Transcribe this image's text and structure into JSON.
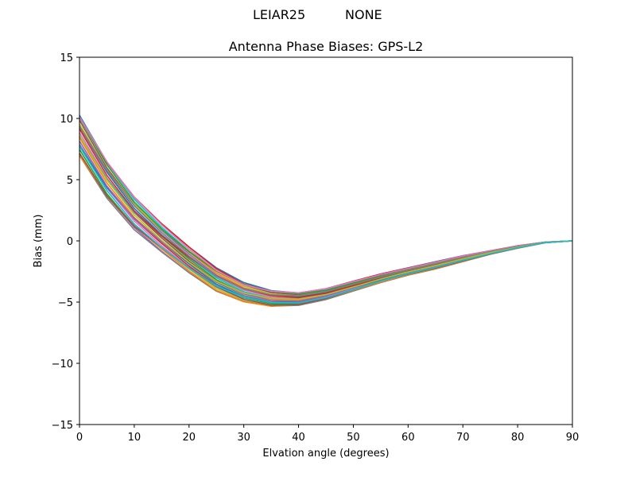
{
  "figure": {
    "suptitle_left": "LEIAR25",
    "suptitle_right": "NONE"
  },
  "chart_data": {
    "type": "line",
    "title": "Antenna Phase Biases: GPS-L2",
    "xlabel": "Elvation angle (degrees)",
    "ylabel": "Bias (mm)",
    "xlim": [
      0,
      90
    ],
    "ylim": [
      -15,
      15
    ],
    "xticks": [
      0,
      10,
      20,
      30,
      40,
      50,
      60,
      70,
      80,
      90
    ],
    "yticks": [
      -15,
      -10,
      -5,
      0,
      5,
      10,
      15
    ],
    "ytick_labels": [
      "−15",
      "−10",
      "−5",
      "0",
      "5",
      "10",
      "15"
    ],
    "grid": false,
    "legend": "none",
    "x": [
      0,
      5,
      10,
      15,
      20,
      25,
      30,
      35,
      40,
      45,
      50,
      55,
      60,
      65,
      70,
      75,
      80,
      85,
      90
    ],
    "series_envelope": {
      "upper": [
        10.4,
        6.6,
        3.6,
        1.4,
        -0.5,
        -2.2,
        -3.4,
        -4.0,
        -4.2,
        -3.9,
        -3.3,
        -2.7,
        -2.2,
        -1.7,
        -1.2,
        -0.8,
        -0.4,
        -0.1,
        0.0
      ],
      "lower": [
        6.8,
        3.4,
        0.9,
        -0.9,
        -2.6,
        -4.1,
        -5.0,
        -5.4,
        -5.3,
        -4.8,
        -4.1,
        -3.4,
        -2.8,
        -2.3,
        -1.7,
        -1.1,
        -0.6,
        -0.15,
        0.0
      ]
    },
    "series_count": 30,
    "colors": [
      "#1f77b4",
      "#ff7f0e",
      "#2ca02c",
      "#d62728",
      "#9467bd",
      "#8c564b",
      "#e377c2",
      "#7f7f7f",
      "#bcbd22",
      "#17becf"
    ]
  }
}
